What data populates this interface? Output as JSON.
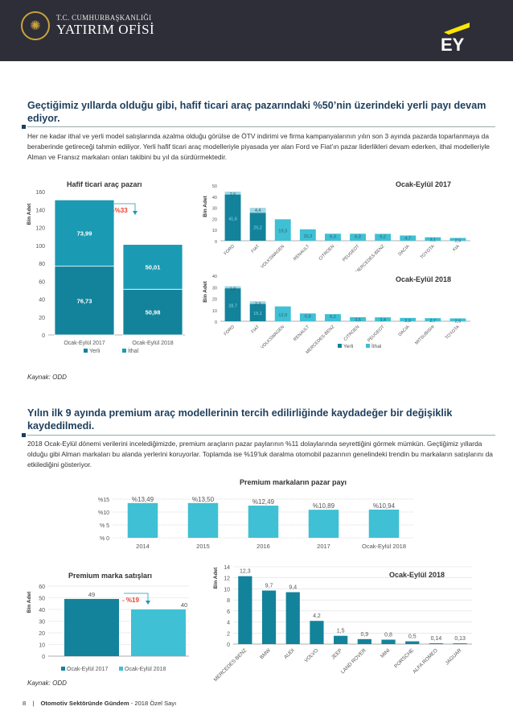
{
  "header": {
    "org_line1": "T.C. CUMHURBAŞKANLIĞI",
    "org_line2": "YATIRIM OFİSİ",
    "partner_logo": "EY",
    "bg_color": "#2e2e38",
    "accent_color": "#ffe600"
  },
  "section1": {
    "heading": "Geçtiğimiz yıllarda olduğu gibi, hafif ticari araç pazarındaki %50’nin üzerindeki yerli payı devam ediyor.",
    "paragraph": "Her ne kadar ithal ve yerli model satışlarında azalma olduğu görülse de ÖTV indirimi ve firma kampanyalarının yılın son 3 ayında pazarda toparlanmaya da beraberinde getireceği tahmin ediliyor. Yerli hafif ticari araç modelleriyle piyasada yer alan Ford ve Fiat’ın pazar liderlikleri devam ederken, ithal modelleriyle Alman ve Fransız markaları onları takibini bu yıl da sürdürmektedir.",
    "source": "Kaynak: ODD"
  },
  "section2": {
    "heading": "Yılın ilk 9 ayında premium araç modellerinin tercih edilirliğinde kaydadeğer bir değişiklik kaydedilmedi.",
    "paragraph": "2018 Ocak-Eylül dönemi verilerini incelediğimizde, premium araçların pazar paylarının %11 dolaylarında seyrettiğini görmek mümkün. Geçtiğimiz yıllarda olduğu gibi Alman markaları bu alanda yerlerini koruyorlar. Toplamda ise %19’luk daralma otomobil pazarının genelindeki trendin bu markaların satışlarını da etkilediğini gösteriyor.",
    "source": "Kaynak: ODD"
  },
  "footer": {
    "page": "8",
    "title": "Otomotiv Sektöründe Gündem",
    "subtitle": "- 2018 Özel Sayı"
  },
  "chart_data": [
    {
      "type": "bar",
      "stacked": true,
      "title": "Hafif ticari araç pazarı",
      "ylabel": "Bin Adet",
      "ylim": [
        0,
        160
      ],
      "yticks": [
        0,
        20,
        40,
        60,
        80,
        100,
        120,
        140,
        160
      ],
      "categories": [
        "Ocak-Eylül 2017",
        "Ocak-Eylül 2018"
      ],
      "series": [
        {
          "name": "Yerli",
          "values": [
            76.73,
            50.98
          ],
          "labels": [
            "76,73",
            "50,98"
          ],
          "color": "#13839b"
        },
        {
          "name": "İthal",
          "values": [
            73.99,
            50.01
          ],
          "labels": [
            "73,99",
            "50,01"
          ],
          "color": "#1b9ab4"
        }
      ],
      "annotation": "-%33",
      "legend": "bottom",
      "colors": {
        "yerli": "#13839b",
        "ithal": "#1b9ab4",
        "annotation": "#e8412f"
      }
    },
    {
      "type": "bar",
      "stacked": true,
      "title": "Ocak-Eylül 2017",
      "ylabel": "Bin Adet",
      "ylim": [
        0,
        50
      ],
      "yticks": [
        0,
        10,
        20,
        30,
        40,
        50
      ],
      "categories": [
        "FORD",
        "FIAT",
        "VOLKSWAGEN",
        "RENAULT",
        "CITROEN",
        "PEUGEOT",
        "MERCEDES-BENZ",
        "DACIA",
        "TOYOTA",
        "KIA"
      ],
      "series": [
        {
          "name": "Yerli",
          "values": [
            41.6,
            25.2,
            0,
            0,
            0,
            0,
            0,
            0,
            0,
            0
          ],
          "labels": [
            "41,6",
            "25,2",
            "",
            "",
            "",
            "",
            "",
            "",
            "",
            ""
          ]
        },
        {
          "name": "İthal",
          "values": [
            2.6,
            4.4,
            19.3,
            10.3,
            6.3,
            6.3,
            6.2,
            4.7,
            3.1,
            2.5
          ],
          "labels": [
            "2,6",
            "4,4",
            "19,3",
            "10,3",
            "6,3",
            "6,3",
            "6,2",
            "4,7",
            "3,1",
            "2,5"
          ]
        }
      ]
    },
    {
      "type": "bar",
      "stacked": true,
      "title": "Ocak-Eylül 2018",
      "ylabel": "Bin Adet",
      "ylim": [
        0,
        40
      ],
      "yticks": [
        0,
        10,
        20,
        30,
        40
      ],
      "categories": [
        "FORD",
        "FIAT",
        "VOLKSWAGEN",
        "RENAULT",
        "MERCEDES-BENZ",
        "CITROEN",
        "PEUGEOT",
        "DACIA",
        "MITSUBISHI",
        "TOYOTA"
      ],
      "series": [
        {
          "name": "Yerli",
          "values": [
            28.7,
            15.1,
            0,
            0,
            0,
            0,
            0,
            0,
            0,
            0
          ],
          "labels": [
            "28,7",
            "15,1",
            "",
            "",
            "",
            "",
            "",
            "",
            "",
            ""
          ]
        },
        {
          "name": "İthal",
          "values": [
            1.8,
            2.3,
            12.9,
            6.8,
            6.2,
            3.5,
            3.4,
            2.9,
            2.7,
            2.5
          ],
          "labels": [
            "1,8",
            "2,3",
            "12,9",
            "6,8",
            "6,2",
            "3,5",
            "3,4",
            "2,9",
            "2,7",
            "2,5"
          ]
        }
      ],
      "legend": [
        "Yerli",
        "İthal"
      ]
    },
    {
      "type": "bar",
      "title": "Premium markaların pazar payı",
      "ylim": [
        0,
        15
      ],
      "yticks": [
        "% 0",
        "% 5",
        "%10",
        "%15"
      ],
      "categories": [
        "2014",
        "2015",
        "2016",
        "2017",
        "Ocak-Eylül 2018"
      ],
      "values": [
        13.49,
        13.5,
        12.49,
        10.89,
        10.94
      ],
      "labels": [
        "%13,49",
        "%13,50",
        "%12,49",
        "%10,89",
        "%10,94"
      ],
      "color": "#3fc0d4"
    },
    {
      "type": "bar",
      "title": "Premium marka satışları",
      "ylabel": "Bin Adet",
      "ylim": [
        0,
        60
      ],
      "yticks": [
        0,
        10,
        20,
        30,
        40,
        50,
        60
      ],
      "categories": [
        "Ocak-Eylül 2017",
        "Ocak-Eylül 2018"
      ],
      "values": [
        49,
        40
      ],
      "labels": [
        "49",
        "40"
      ],
      "annotation": "- %19",
      "legend": "bottom",
      "colors": [
        "#13839b",
        "#3fc0d4"
      ]
    },
    {
      "type": "bar",
      "title": "Ocak-Eylül 2018",
      "ylabel": "Bin Adet",
      "ylim": [
        0,
        14
      ],
      "yticks": [
        0,
        2,
        4,
        6,
        8,
        10,
        12,
        14
      ],
      "categories": [
        "MERCEDES-BENZ",
        "BMW",
        "AUDI",
        "VOLVO",
        "JEEP",
        "LAND ROVER",
        "MINI",
        "PORSCHE",
        "ALFA ROMEO",
        "JAGUAR"
      ],
      "values": [
        12.3,
        9.7,
        9.4,
        4.2,
        1.5,
        0.9,
        0.8,
        0.5,
        0.14,
        0.13
      ],
      "labels": [
        "12,3",
        "9,7",
        "9,4",
        "4,2",
        "1,5",
        "0,9",
        "0,8",
        "0,5",
        "0,14",
        "0,13"
      ],
      "color": "#13839b"
    }
  ]
}
